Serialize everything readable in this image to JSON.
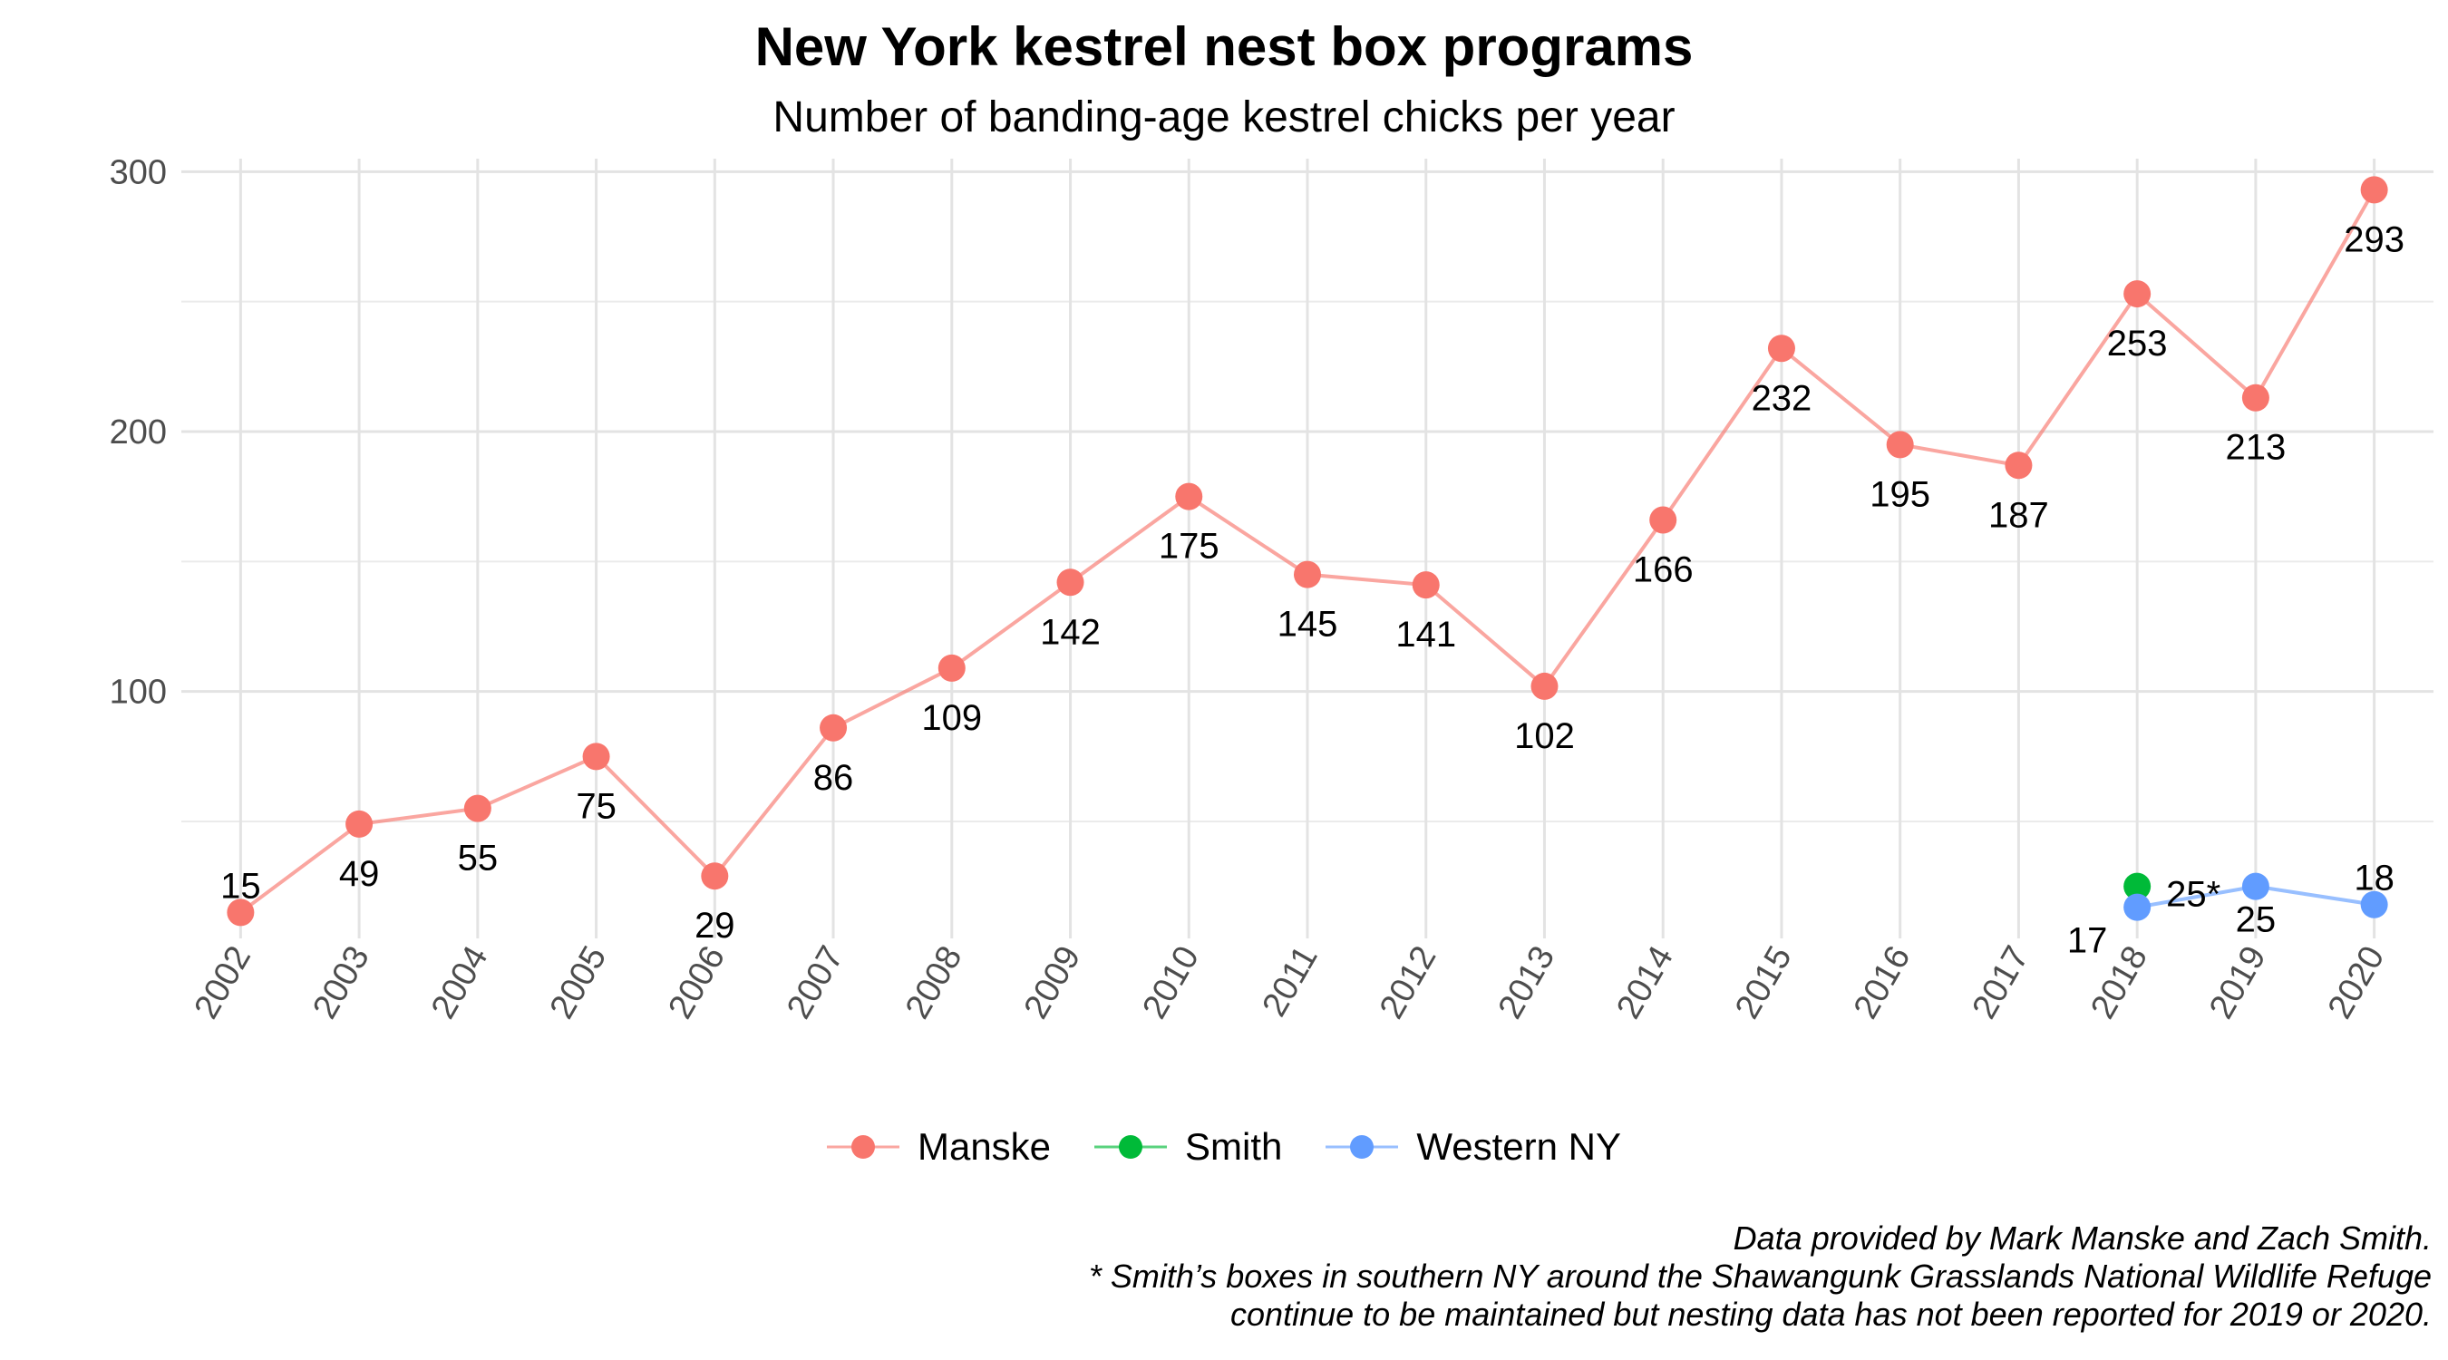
{
  "chart_data": {
    "type": "line",
    "title": "New York kestrel nest box programs",
    "subtitle": "Number of banding-age kestrel chicks per year",
    "xlabel": "",
    "ylabel": "",
    "x": [
      2002,
      2003,
      2004,
      2005,
      2006,
      2007,
      2008,
      2009,
      2010,
      2011,
      2012,
      2013,
      2014,
      2015,
      2016,
      2017,
      2018,
      2019,
      2020
    ],
    "ylim": [
      5,
      305
    ],
    "yticks": [
      100,
      200,
      300
    ],
    "grid": true,
    "legend_position": "bottom",
    "series": [
      {
        "name": "Manske",
        "color": "#F8766D",
        "x": [
          2002,
          2003,
          2004,
          2005,
          2006,
          2007,
          2008,
          2009,
          2010,
          2011,
          2012,
          2013,
          2014,
          2015,
          2016,
          2017,
          2018,
          2019,
          2020
        ],
        "values": [
          15,
          49,
          55,
          75,
          29,
          86,
          109,
          142,
          175,
          145,
          141,
          102,
          166,
          232,
          195,
          187,
          253,
          213,
          293
        ],
        "labels": [
          "15",
          "49",
          "55",
          "75",
          "29",
          "86",
          "109",
          "142",
          "175",
          "145",
          "141",
          "102",
          "166",
          "232",
          "195",
          "187",
          "253",
          "213",
          "293"
        ]
      },
      {
        "name": "Smith",
        "color": "#00BA38",
        "x": [
          2018
        ],
        "values": [
          25
        ],
        "labels": [
          "25*"
        ]
      },
      {
        "name": "Western NY",
        "color": "#619CFF",
        "x": [
          2018,
          2019,
          2020
        ],
        "values": [
          17,
          25,
          18
        ],
        "labels": [
          "17",
          "25",
          "18"
        ]
      }
    ],
    "caption": [
      "Data provided by Mark Manske and Zach Smith.",
      "* Smith’s boxes in southern NY around the Shawangunk Grasslands National Wildlife Refuge",
      "continue to be maintained but nesting data has not been reported for 2019 or 2020."
    ]
  }
}
